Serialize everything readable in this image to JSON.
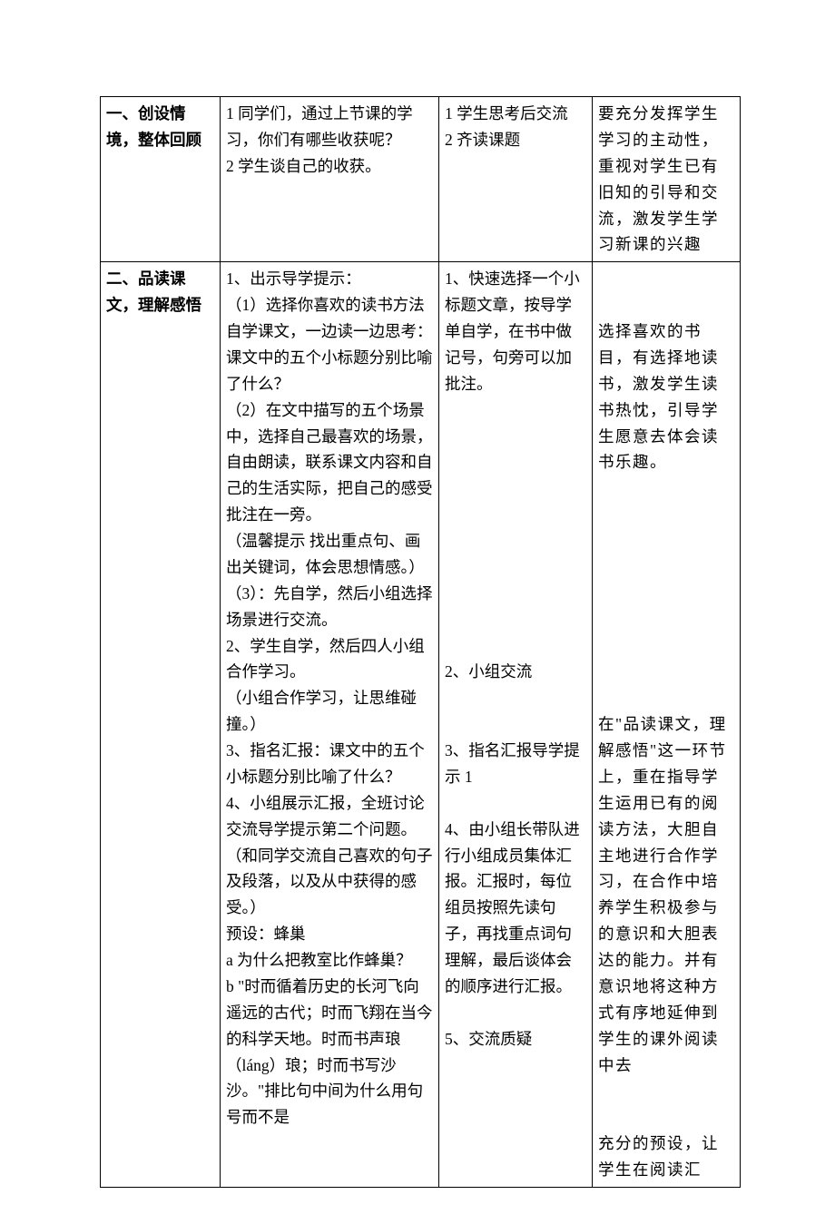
{
  "table": {
    "rows": [
      {
        "c1": "一、创设情境，整体回顾",
        "c2": "1 同学们，通过上节课的学习，你们有哪些收获呢？\n2 学生谈自己的收获。",
        "c3": "1 学生思考后交流\n2 齐读课题",
        "c4": "要充分发挥学生学习的主动性，重视对学生已有旧知的引导和交流，激发学生学习新课的兴趣"
      },
      {
        "c1": "二、品读课文，理解感悟",
        "c2": "1、出示导学提示：\n（1）选择你喜欢的读书方法自学课文，一边读一边思考：课文中的五个小标题分别比喻了什么？\n（2）在文中描写的五个场景中，选择自己最喜欢的场景，自由朗读，联系课文内容和自己的生活实际，把自己的感受批注在一旁。\n（温馨提示 找出重点句、画出关键词，体会思想情感。）\n（3）：先自学，然后小组选择场景进行交流。\n2、学生自学，然后四人小组合作学习。\n（小组合作学习，让思维碰撞。）\n3、指名汇报：课文中的五个小标题分别比喻了什么？\n4、小组展示汇报，全班讨论交流导学提示第二个问题。（和同学交流自己喜欢的句子及段落，以及从中获得的感受。）\n预设：蜂巢\na 为什么把教室比作蜂巢？\nb \"时而循着历史的长河飞向遥远的古代；时而飞翔在当今的科学天地。时而书声琅（láng）琅；时而书写沙沙。\"排比句中间为什么用句号而不是",
        "c3": "1、快速选择一个小标题文章，按导学单自学，在书中做记号，句旁可以加批注。\n\n\n\n\n\n\n\n\n\n\n2、小组交流\n\n\n3、指名汇报导学提示 1\n\n4、由小组长带队进行小组成员集体汇报。汇报时，每位组员按照先读句子，再找重点词句理解，最后谈体会的顺序进行汇报。\n\n5、交流质疑",
        "c4": "\n\n选择喜欢的书目，有选择地读书，激发学生读书热忱，引导学生愿意去体会读书乐趣。\n\n\n\n\n\n\n\n\n\n在\"品读课文，理解感悟\"这一环节上，重在指导学生运用已有的阅读方法，大胆自主地进行合作学习，在合作中培养学生积极参与的意识和大胆表达的能力。并有意识地将这种方式有序地延伸到学生的课外阅读中去\n\n\n充分的预设，让学生在阅读汇"
      }
    ]
  }
}
